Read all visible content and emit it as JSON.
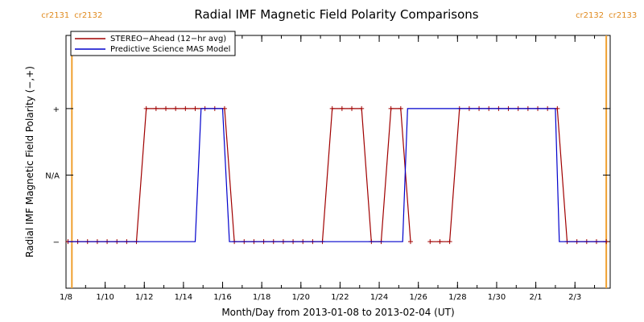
{
  "chart_data": {
    "type": "line",
    "title": "Radial IMF Magnetic Field Polarity Comparisons",
    "xlabel": "Month/Day from 2013-01-08 to 2013-02-04 (UT)",
    "ylabel": "Radial IMF Magnetic Field Polarity (−,+)",
    "xlim": [
      0,
      27.8
    ],
    "ylim": [
      -1.7,
      2.1
    ],
    "x_ticks": [
      {
        "x": 0,
        "label": "1/8"
      },
      {
        "x": 2,
        "label": "1/10"
      },
      {
        "x": 4,
        "label": "1/12"
      },
      {
        "x": 6,
        "label": "1/14"
      },
      {
        "x": 8,
        "label": "1/16"
      },
      {
        "x": 10,
        "label": "1/18"
      },
      {
        "x": 12,
        "label": "1/20"
      },
      {
        "x": 14,
        "label": "1/22"
      },
      {
        "x": 16,
        "label": "1/24"
      },
      {
        "x": 18,
        "label": "1/26"
      },
      {
        "x": 20,
        "label": "1/28"
      },
      {
        "x": 22,
        "label": "1/30"
      },
      {
        "x": 24,
        "label": "2/1"
      },
      {
        "x": 26,
        "label": "2/3"
      }
    ],
    "y_ticks": [
      {
        "y": 1,
        "label": "+"
      },
      {
        "y": 0,
        "label": "N/A"
      },
      {
        "y": -1,
        "label": "−"
      }
    ],
    "carrington_markers": [
      {
        "x": 0.3,
        "left_label": "cr2131",
        "right_label": "cr2132"
      },
      {
        "x": 27.6,
        "left_label": "cr2132",
        "right_label": "cr2133"
      }
    ],
    "legend": "top-left",
    "series": [
      {
        "name": "STEREO−Ahead (12−hr avg)",
        "color": "#a00000",
        "marker": "+",
        "segments": [
          [
            [
              0.1,
              -1
            ],
            [
              0.6,
              -1
            ],
            [
              1.1,
              -1
            ],
            [
              1.6,
              -1
            ],
            [
              2.1,
              -1
            ],
            [
              2.6,
              -1
            ],
            [
              3.1,
              -1
            ],
            [
              3.6,
              -1
            ],
            [
              4.1,
              1
            ],
            [
              4.6,
              1
            ],
            [
              5.1,
              1
            ],
            [
              5.6,
              1
            ],
            [
              6.1,
              1
            ],
            [
              6.6,
              1
            ],
            [
              7.1,
              1
            ],
            [
              7.6,
              1
            ],
            [
              8.1,
              1
            ],
            [
              8.6,
              -1
            ],
            [
              9.1,
              -1
            ],
            [
              9.6,
              -1
            ],
            [
              10.1,
              -1
            ],
            [
              10.6,
              -1
            ],
            [
              11.1,
              -1
            ],
            [
              11.6,
              -1
            ],
            [
              12.1,
              -1
            ],
            [
              12.6,
              -1
            ],
            [
              13.1,
              -1
            ],
            [
              13.6,
              1
            ],
            [
              14.1,
              1
            ],
            [
              14.6,
              1
            ],
            [
              15.1,
              1
            ],
            [
              15.6,
              -1
            ],
            [
              16.1,
              -1
            ],
            [
              16.6,
              1
            ],
            [
              17.1,
              1
            ],
            [
              17.6,
              -1
            ]
          ],
          [
            [
              18.6,
              -1
            ],
            [
              19.1,
              -1
            ],
            [
              19.6,
              -1
            ],
            [
              20.1,
              1
            ],
            [
              20.6,
              1
            ],
            [
              21.1,
              1
            ],
            [
              21.6,
              1
            ],
            [
              22.1,
              1
            ],
            [
              22.6,
              1
            ],
            [
              23.1,
              1
            ],
            [
              23.6,
              1
            ],
            [
              24.1,
              1
            ],
            [
              24.6,
              1
            ],
            [
              25.1,
              1
            ],
            [
              25.6,
              -1
            ],
            [
              26.1,
              -1
            ],
            [
              26.6,
              -1
            ],
            [
              27.1,
              -1
            ],
            [
              27.6,
              -1
            ]
          ]
        ]
      },
      {
        "name": "Predictive Science MAS Model",
        "color": "#0000cc",
        "marker": "",
        "segments": [
          [
            [
              0.1,
              -1
            ],
            [
              6.6,
              -1
            ],
            [
              6.9,
              1
            ],
            [
              8.0,
              1
            ],
            [
              8.35,
              -1
            ],
            [
              17.2,
              -1
            ],
            [
              17.45,
              1
            ],
            [
              25.0,
              1
            ],
            [
              25.2,
              -1
            ],
            [
              27.6,
              -1
            ]
          ]
        ]
      }
    ]
  }
}
